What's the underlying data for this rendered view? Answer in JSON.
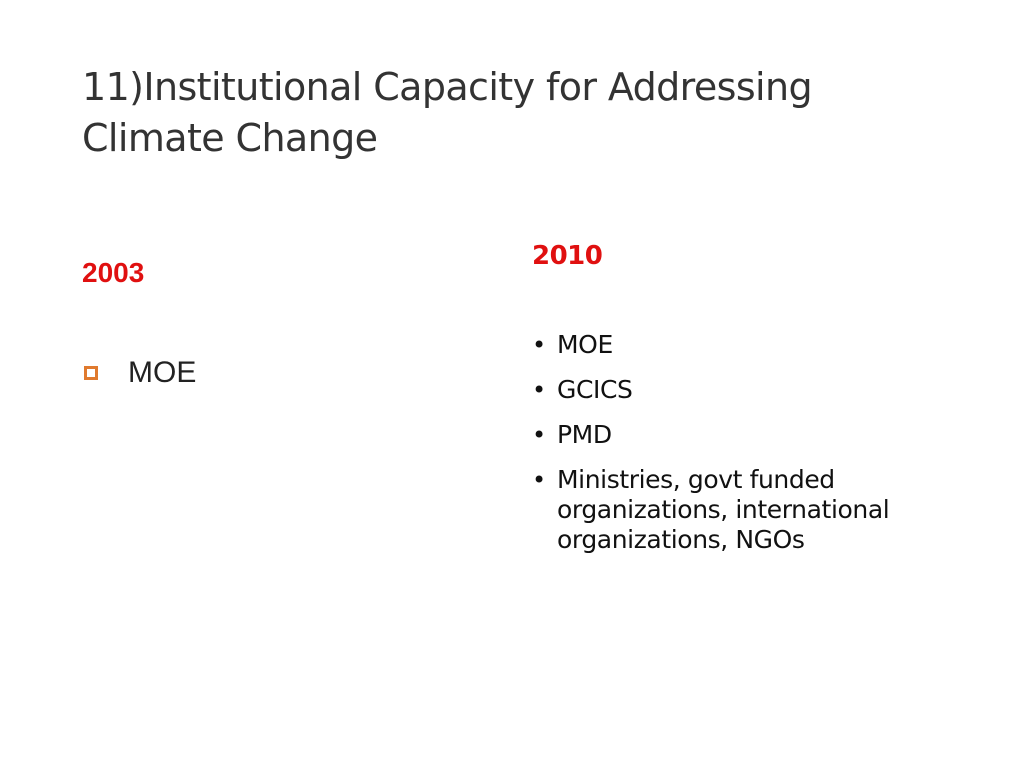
{
  "slide": {
    "title": "11)Institutional Capacity for Addressing Climate Change",
    "accent_color": "#e01010",
    "bullet_color": "#e07a2e"
  },
  "left_column": {
    "heading": "2003",
    "items": [
      {
        "label": "MOE",
        "bullet_icon": "hollow-square"
      }
    ]
  },
  "right_column": {
    "heading": "2010",
    "items": [
      {
        "label": "MOE",
        "bullet_icon": "dot"
      },
      {
        "label": "GCICS",
        "bullet_icon": "dot"
      },
      {
        "label": "PMD",
        "bullet_icon": "dot"
      },
      {
        "label": "Ministries, govt funded organizations, international organizations, NGOs",
        "bullet_icon": "dot"
      }
    ]
  }
}
